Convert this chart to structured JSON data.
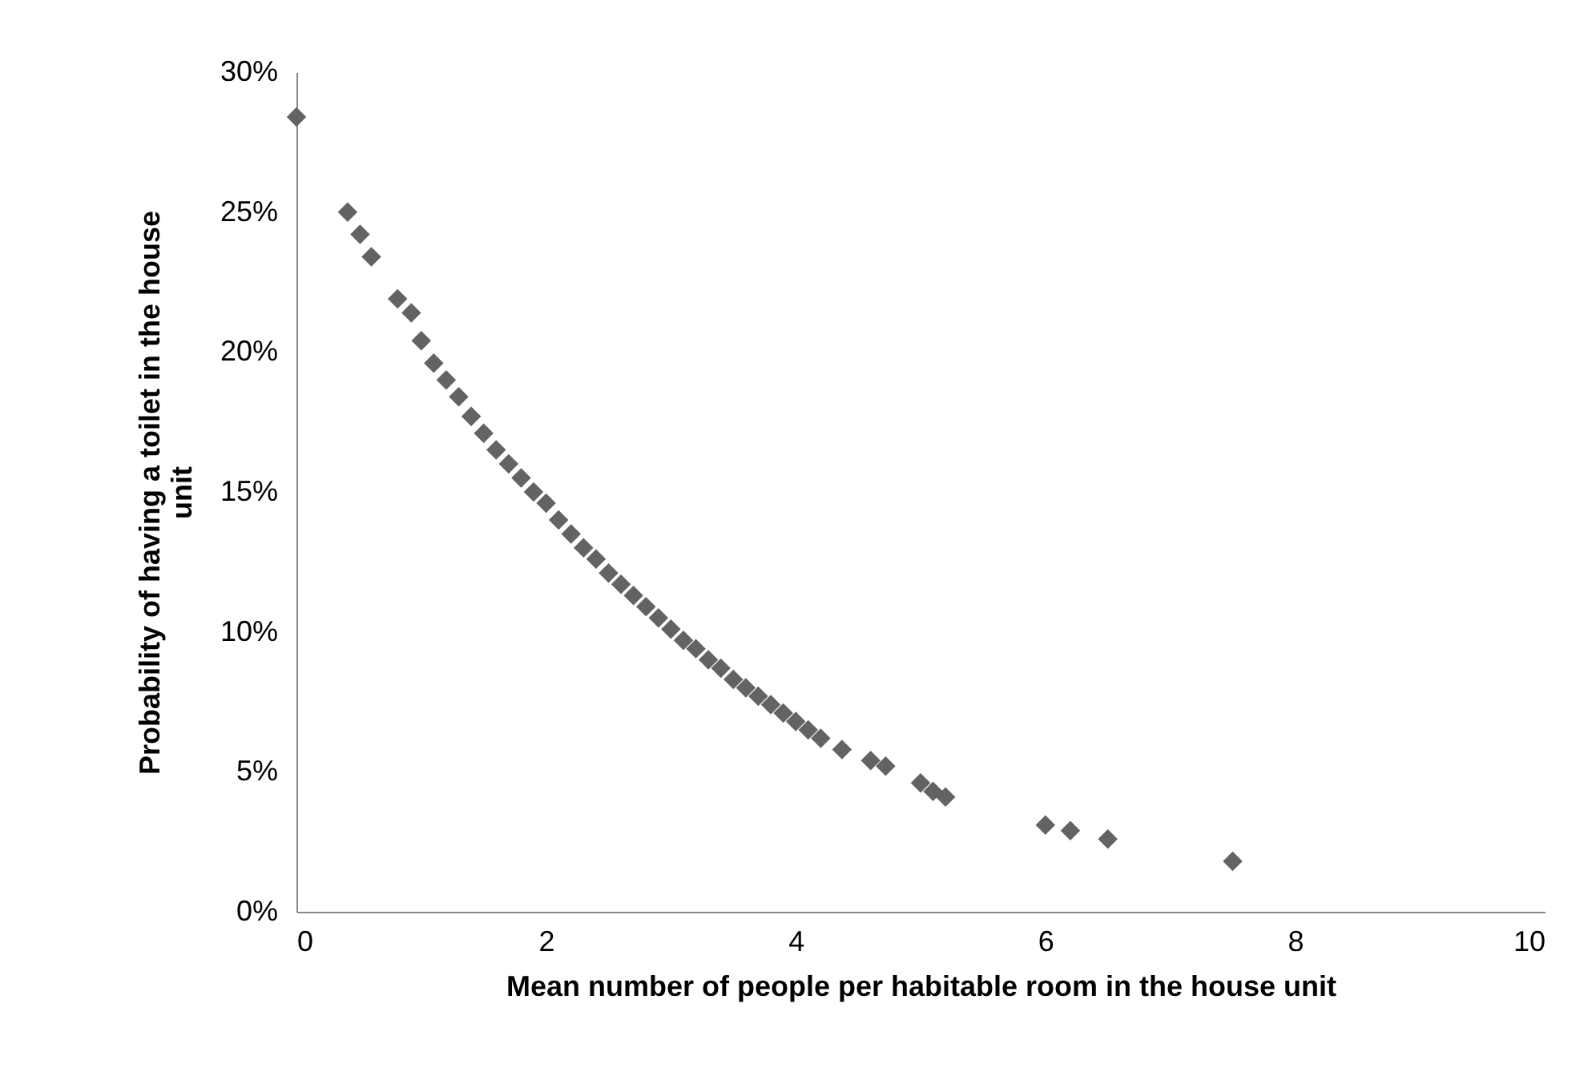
{
  "chart_data": {
    "type": "scatter",
    "xlabel": "Mean number of people per habitable room in the house unit",
    "ylabel": "Probability of having a toilet in the house unit",
    "x": [
      0,
      0.41,
      0.51,
      0.6,
      0.81,
      0.92,
      1.0,
      1.1,
      1.2,
      1.3,
      1.4,
      1.5,
      1.6,
      1.7,
      1.8,
      1.9,
      2.0,
      2.1,
      2.2,
      2.3,
      2.4,
      2.5,
      2.6,
      2.7,
      2.8,
      2.9,
      3.0,
      3.1,
      3.2,
      3.3,
      3.4,
      3.5,
      3.6,
      3.7,
      3.8,
      3.9,
      4.0,
      4.1,
      4.2,
      4.37,
      4.6,
      4.72,
      5.0,
      5.1,
      5.2,
      6.0,
      6.2,
      6.5,
      7.5
    ],
    "series": [
      {
        "color": "#636363",
        "values": [
          0.284,
          0.25,
          0.242,
          0.234,
          0.219,
          0.214,
          0.204,
          0.196,
          0.19,
          0.184,
          0.177,
          0.171,
          0.165,
          0.16,
          0.155,
          0.15,
          0.146,
          0.14,
          0.135,
          0.13,
          0.126,
          0.121,
          0.117,
          0.113,
          0.109,
          0.105,
          0.101,
          0.097,
          0.094,
          0.09,
          0.087,
          0.083,
          0.08,
          0.077,
          0.074,
          0.071,
          0.068,
          0.065,
          0.062,
          0.058,
          0.054,
          0.052,
          0.046,
          0.043,
          0.041,
          0.031,
          0.029,
          0.026,
          0.018
        ]
      }
    ],
    "xlim": [
      0,
      10
    ],
    "xticks": [
      0,
      2,
      4,
      6,
      8,
      10
    ],
    "ylim": [
      0,
      0.3
    ],
    "yticks": [
      {
        "value": 0,
        "label": "0%"
      },
      {
        "value": 0.05,
        "label": "5%"
      },
      {
        "value": 0.1,
        "label": "10%"
      },
      {
        "value": 0.15,
        "label": "15%"
      },
      {
        "value": 0.2,
        "label": "20%"
      },
      {
        "value": 0.25,
        "label": "25%"
      },
      {
        "value": 0.3,
        "label": "30%"
      }
    ],
    "marker": "diamond"
  }
}
